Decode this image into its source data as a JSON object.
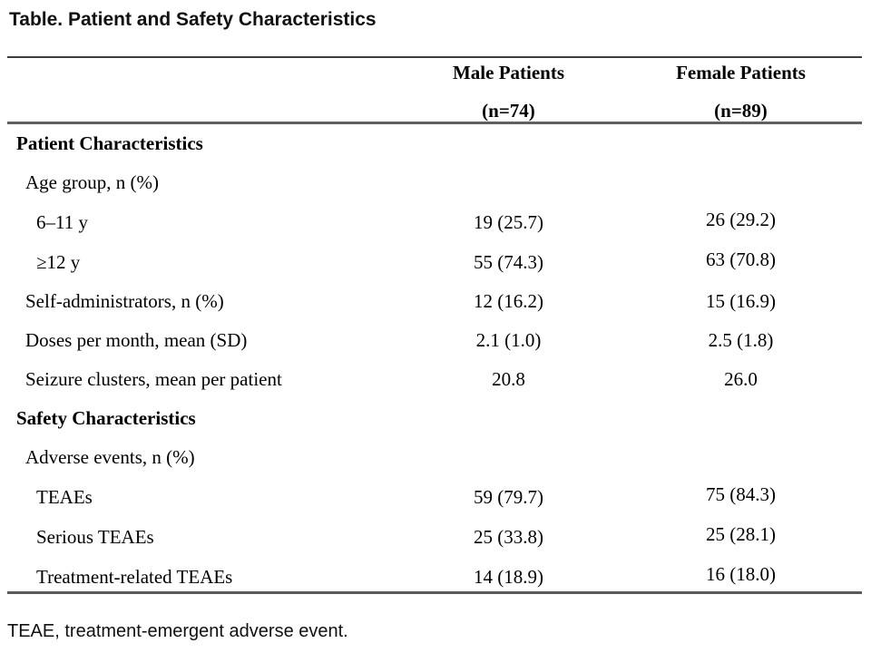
{
  "title": "Table. Patient and Safety Characteristics",
  "footnote": "TEAE, treatment-emergent adverse event.",
  "colors": {
    "background": "#ffffff",
    "text": "#000000",
    "rule_top": "#3d3d3d",
    "rule_gray": "#606060"
  },
  "table": {
    "header": {
      "male": {
        "line1": "Male Patients",
        "line2": "(n=74)"
      },
      "female": {
        "line1": "Female Patients",
        "line2": "(n=89)"
      }
    },
    "rows": [
      {
        "label": "Patient Characteristics",
        "style": "section",
        "male": "",
        "female": ""
      },
      {
        "label": "Age group, n (%)",
        "style": "item",
        "male": "",
        "female": ""
      },
      {
        "label": "6–11 y",
        "style": "subitem",
        "male": "19 (25.7)",
        "female_lines": [
          "26 (29.2)",
          "63 (70.8)"
        ]
      },
      {
        "label": "≥12 y",
        "style": "subitem",
        "male": "55 (74.3)"
      },
      {
        "label": "Self-administrators, n (%)",
        "style": "item",
        "male": "12 (16.2)",
        "female": "15 (16.9)"
      },
      {
        "label": "Doses per month, mean (SD)",
        "style": "item",
        "male": "2.1 (1.0)",
        "female": "2.5 (1.8)"
      },
      {
        "label": "Seizure clusters, mean per patient",
        "style": "item",
        "male": "20.8",
        "female": "26.0"
      },
      {
        "label": "Safety Characteristics",
        "style": "section",
        "male": "",
        "female": ""
      },
      {
        "label": "Adverse events, n (%)",
        "style": "item",
        "male": "",
        "female": ""
      },
      {
        "label": "TEAEs",
        "style": "subitem",
        "male": "59 (79.7)",
        "female_lines": [
          "75 (84.3)",
          "25 (28.1)",
          "16 (18.0)"
        ]
      },
      {
        "label": "Serious TEAEs",
        "style": "subitem",
        "male": "25 (33.8)"
      },
      {
        "label": "Treatment-related TEAEs",
        "style": "subitem",
        "male": "14 (18.9)"
      }
    ]
  }
}
